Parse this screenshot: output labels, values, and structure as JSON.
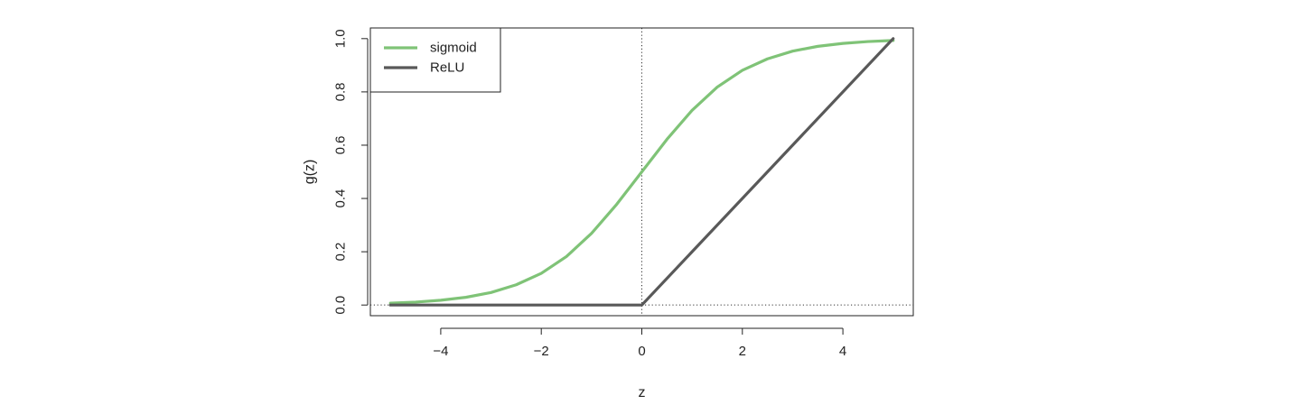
{
  "chart_data": {
    "type": "line",
    "xlabel": "z",
    "ylabel": "g(z)",
    "xlim": [
      -5.4,
      5.4
    ],
    "ylim": [
      -0.04,
      1.04
    ],
    "x_ticks": [
      -4,
      -2,
      0,
      2,
      4
    ],
    "x_tick_labels": [
      "−4",
      "−2",
      "0",
      "2",
      "4"
    ],
    "y_ticks": [
      0.0,
      0.2,
      0.4,
      0.6,
      0.8,
      1.0
    ],
    "y_tick_labels": [
      "0.0",
      "0.2",
      "0.4",
      "0.6",
      "0.8",
      "1.0"
    ],
    "reference_lines": [
      {
        "orientation": "vertical",
        "value": 0,
        "style": "dotted"
      },
      {
        "orientation": "horizontal",
        "value": 0,
        "style": "dotted"
      }
    ],
    "legend_position": "top-left",
    "series": [
      {
        "name": "sigmoid",
        "color": "#7fc377",
        "x": [
          -5,
          -4.5,
          -4,
          -3.5,
          -3,
          -2.5,
          -2,
          -1.5,
          -1,
          -0.5,
          0,
          0.5,
          1,
          1.5,
          2,
          2.5,
          3,
          3.5,
          4,
          4.5,
          5
        ],
        "y": [
          0.007,
          0.011,
          0.018,
          0.029,
          0.047,
          0.076,
          0.119,
          0.182,
          0.269,
          0.378,
          0.5,
          0.622,
          0.731,
          0.818,
          0.881,
          0.924,
          0.953,
          0.971,
          0.982,
          0.989,
          0.993
        ]
      },
      {
        "name": "ReLU",
        "color": "#595959",
        "x": [
          -5,
          0,
          5
        ],
        "y": [
          0,
          0,
          1
        ]
      }
    ]
  }
}
